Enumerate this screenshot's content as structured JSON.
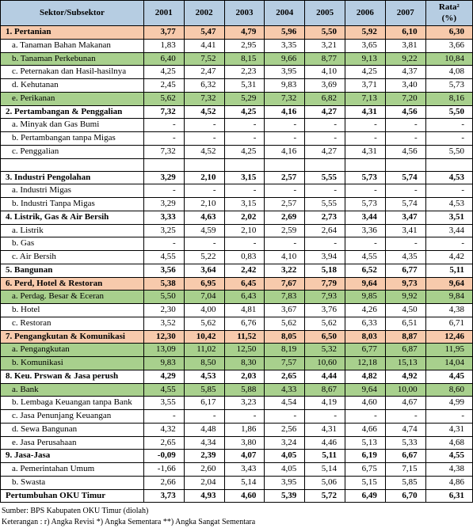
{
  "columns": [
    "Sektor/Subsektor",
    "2001",
    "2002",
    "2003",
    "2004",
    "2005",
    "2006",
    "2007",
    "Rata²\n(%)"
  ],
  "colWidths": [
    "155px",
    "48px",
    "48px",
    "48px",
    "48px",
    "48px",
    "48px",
    "48px",
    "56px"
  ],
  "rows": [
    {
      "cls": "orange",
      "cells": [
        "1. Pertanian",
        "3,77",
        "5,47",
        "4,79",
        "5,96",
        "5,50",
        "5,92",
        "6,10",
        "6,30"
      ]
    },
    {
      "cls": "",
      "cells": [
        "   a. Tanaman Bahan Makanan",
        "1,83",
        "4,41",
        "2,95",
        "3,35",
        "3,21",
        "3,65",
        "3,81",
        "3,66"
      ],
      "sub": true
    },
    {
      "cls": "green",
      "cells": [
        "   b. Tanaman Perkebunan",
        "6,40",
        "7,52",
        "8,15",
        "9,66",
        "8,77",
        "9,13",
        "9,22",
        "10,84"
      ],
      "sub": true
    },
    {
      "cls": "",
      "cells": [
        "   c. Peternakan dan Hasil-hasilnya",
        "4,25",
        "2,47",
        "2,23",
        "3,95",
        "4,10",
        "4,25",
        "4,37",
        "4,08"
      ],
      "sub": true
    },
    {
      "cls": "",
      "cells": [
        "   d. Kehutanan",
        "2,45",
        "6,32",
        "5,31",
        "9,83",
        "3,69",
        "3,71",
        "3,40",
        "5,73"
      ],
      "sub": true
    },
    {
      "cls": "green",
      "cells": [
        "   e. Perikanan",
        "5,62",
        "7,32",
        "5,29",
        "7,32",
        "6,82",
        "7,13",
        "7,20",
        "8,16"
      ],
      "sub": true
    },
    {
      "cls": "bold",
      "cells": [
        "2. Pertambangan & Penggalian",
        "7,32",
        "4,52",
        "4,25",
        "4,16",
        "4,27",
        "4,31",
        "4,56",
        "5,50"
      ]
    },
    {
      "cls": "",
      "cells": [
        "   a. Minyak dan Gas Bumi",
        "-",
        "-",
        "-",
        "-",
        "-",
        "-",
        "-",
        "-"
      ],
      "sub": true
    },
    {
      "cls": "",
      "cells": [
        "   b. Pertambangan tanpa Migas",
        "-",
        "-",
        "-",
        "-",
        "-",
        "-",
        "-",
        "-"
      ],
      "sub": true
    },
    {
      "cls": "",
      "cells": [
        "   c. Penggalian",
        "7,32",
        "4,52",
        "4,25",
        "4,16",
        "4,27",
        "4,31",
        "4,56",
        "5,50"
      ],
      "sub": true
    },
    {
      "cls": "blank",
      "cells": [
        "",
        "",
        "",
        "",
        "",
        "",
        "",
        "",
        ""
      ]
    },
    {
      "cls": "bold",
      "cells": [
        "3. Industri Pengolahan",
        "3,29",
        "2,10",
        "3,15",
        "2,57",
        "5,55",
        "5,73",
        "5,74",
        "4,53"
      ]
    },
    {
      "cls": "",
      "cells": [
        "   a. Industri Migas",
        "-",
        "-",
        "-",
        "-",
        "-",
        "-",
        "-",
        "-"
      ],
      "sub": true
    },
    {
      "cls": "",
      "cells": [
        "   b. Industri Tanpa Migas",
        "3,29",
        "2,10",
        "3,15",
        "2,57",
        "5,55",
        "5,73",
        "5,74",
        "4,53"
      ],
      "sub": true
    },
    {
      "cls": "bold",
      "cells": [
        "4. Listrik, Gas & Air Bersih",
        "3,33",
        "4,63",
        "2,02",
        "2,69",
        "2,73",
        "3,44",
        "3,47",
        "3,51"
      ]
    },
    {
      "cls": "",
      "cells": [
        "   a. Listrik",
        "3,25",
        "4,59",
        "2,10",
        "2,59",
        "2,64",
        "3,36",
        "3,41",
        "3,44"
      ],
      "sub": true
    },
    {
      "cls": "",
      "cells": [
        "   b. Gas",
        "-",
        "-",
        "-",
        "-",
        "-",
        "-",
        "-",
        "-"
      ],
      "sub": true
    },
    {
      "cls": "",
      "cells": [
        "   c. Air Bersih",
        "4,55",
        "5,22",
        "0,83",
        "4,10",
        "3,94",
        "4,55",
        "4,35",
        "4,42"
      ],
      "sub": true
    },
    {
      "cls": "bold",
      "cells": [
        "5. Bangunan",
        "3,56",
        "3,64",
        "2,42",
        "3,22",
        "5,18",
        "6,52",
        "6,77",
        "5,11"
      ]
    },
    {
      "cls": "orange",
      "cells": [
        "6. Perd, Hotel & Restoran",
        "5,38",
        "6,95",
        "6,45",
        "7,67",
        "7,79",
        "9,64",
        "9,73",
        "9,64"
      ]
    },
    {
      "cls": "green",
      "cells": [
        "   a. Perdag. Besar & Eceran",
        "5,50",
        "7,04",
        "6,43",
        "7,83",
        "7,93",
        "9,85",
        "9,92",
        "9,84"
      ],
      "sub": true
    },
    {
      "cls": "",
      "cells": [
        "   b. Hotel",
        "2,30",
        "4,00",
        "4,81",
        "3,67",
        "3,76",
        "4,26",
        "4,50",
        "4,38"
      ],
      "sub": true
    },
    {
      "cls": "",
      "cells": [
        "   c. Restoran",
        "3,52",
        "5,62",
        "6,76",
        "5,62",
        "5,62",
        "6,33",
        "6,51",
        "6,71"
      ],
      "sub": true
    },
    {
      "cls": "orange",
      "cells": [
        "7. Pengangkutan & Komunikasi",
        "12,30",
        "10,42",
        "11,52",
        "8,05",
        "6,50",
        "8,03",
        "8,87",
        "12,46"
      ]
    },
    {
      "cls": "green",
      "cells": [
        "   a. Pengangkutan",
        "13,09",
        "11,02",
        "12,50",
        "8,19",
        "5,32",
        "6,77",
        "6,87",
        "11,95"
      ],
      "sub": true
    },
    {
      "cls": "green",
      "cells": [
        "   b. Komunikasi",
        "9,83",
        "8,50",
        "8,30",
        "7,57",
        "10,60",
        "12,18",
        "15,13",
        "14,04"
      ],
      "sub": true
    },
    {
      "cls": "bold",
      "cells": [
        "8. Keu. Prswan & Jasa perush",
        "4,29",
        "4,53",
        "2,03",
        "2,65",
        "4,44",
        "4,82",
        "4,92",
        "4,45"
      ]
    },
    {
      "cls": "green",
      "cells": [
        "   a. Bank",
        "4,55",
        "5,85",
        "5,88",
        "4,33",
        "8,67",
        "9,64",
        "10,00",
        "8,60"
      ],
      "sub": true
    },
    {
      "cls": "",
      "cells": [
        "   b. Lembaga Keuangan tanpa Bank",
        "3,55",
        "6,17",
        "3,23",
        "4,54",
        "4,19",
        "4,60",
        "4,67",
        "4,99"
      ],
      "sub": true
    },
    {
      "cls": "",
      "cells": [
        "   c. Jasa Penunjang Keuangan",
        "-",
        "-",
        "-",
        "-",
        "-",
        "-",
        "-",
        "-"
      ],
      "sub": true
    },
    {
      "cls": "",
      "cells": [
        "   d. Sewa Bangunan",
        "4,32",
        "4,48",
        "1,86",
        "2,56",
        "4,31",
        "4,66",
        "4,74",
        "4,31"
      ],
      "sub": true
    },
    {
      "cls": "",
      "cells": [
        "   e. Jasa Perusahaan",
        "2,65",
        "4,34",
        "3,80",
        "3,24",
        "4,46",
        "5,13",
        "5,33",
        "4,68"
      ],
      "sub": true
    },
    {
      "cls": "bold",
      "cells": [
        "9. Jasa-Jasa",
        "-0,09",
        "2,39",
        "4,07",
        "4,05",
        "5,11",
        "6,19",
        "6,67",
        "4,55"
      ]
    },
    {
      "cls": "",
      "cells": [
        "   a. Pemerintahan Umum",
        "-1,66",
        "2,60",
        "3,43",
        "4,05",
        "5,14",
        "6,75",
        "7,15",
        "4,38"
      ],
      "sub": true
    },
    {
      "cls": "",
      "cells": [
        "   b. Swasta",
        "2,66",
        "2,04",
        "5,14",
        "3,95",
        "5,06",
        "5,15",
        "5,85",
        "4,86"
      ],
      "sub": true
    },
    {
      "cls": "total",
      "cells": [
        "   Pertumbuhan OKU Timur",
        "3,73",
        "4,93",
        "4,60",
        "5,39",
        "5,72",
        "6,49",
        "6,70",
        "6,31"
      ]
    }
  ],
  "footer": {
    "line1": "Sumber: BPS Kabupaten OKU Timur (diolah)",
    "line2": "Keterangan  : r)   Angka Revisi            *)   Angka Sementara            **)  Angka Sangat Sementara"
  }
}
